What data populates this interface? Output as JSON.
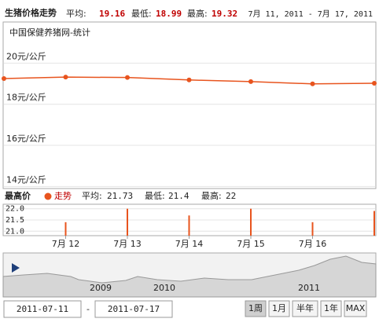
{
  "header": {
    "title": "生猪价格走势",
    "avg_label": "平均:",
    "avg": 19.16,
    "min_label": "最低:",
    "min": 18.99,
    "max_label": "最高:",
    "max": 19.32,
    "range": "7月 11, 2011 - 7月 17, 2011"
  },
  "chart_data": [
    {
      "type": "line",
      "subtitle": "中国保健养猪网-统计",
      "values": [
        19.25,
        19.32,
        19.3,
        19.18,
        19.1,
        18.99,
        19.02
      ],
      "color": "#e8541e",
      "ylim": [
        13.9,
        22
      ],
      "yticks": [
        {
          "value": 14,
          "label": "14元/公斤"
        },
        {
          "value": 16,
          "label": "16元/公斤"
        },
        {
          "value": 18,
          "label": "18元/公斤"
        },
        {
          "value": 20,
          "label": "20元/公斤"
        }
      ],
      "grid": true
    },
    {
      "type": "bar",
      "title": "最高价",
      "categories": [
        null,
        "7月 12",
        "7月 13",
        "7月 14",
        "7月 15",
        "7月 16",
        null
      ],
      "series": [
        {
          "name": "走势",
          "color": "#e8541e",
          "values": [
            null,
            21.4,
            22,
            21.7,
            22,
            21.4,
            21.9
          ]
        }
      ],
      "avg_label": "平均:",
      "avg": 21.73,
      "min_label": "最低:",
      "min": 21.4,
      "max_label": "最高:",
      "max": 22,
      "ylim": [
        20.8,
        22.2
      ],
      "yticks": [
        {
          "value": 21,
          "label": "21.0"
        },
        {
          "value": 21.5,
          "label": "21.5"
        },
        {
          "value": 22,
          "label": "22.0"
        }
      ],
      "grid": true
    }
  ],
  "navigator": {
    "labels": [
      "2009",
      "2010",
      "2011"
    ]
  },
  "controls": {
    "from": "2011-07-11",
    "sep": "-",
    "to": "2011-07-17",
    "buttons": [
      "1周",
      "1月",
      "半年",
      "1年",
      "MAX"
    ]
  }
}
